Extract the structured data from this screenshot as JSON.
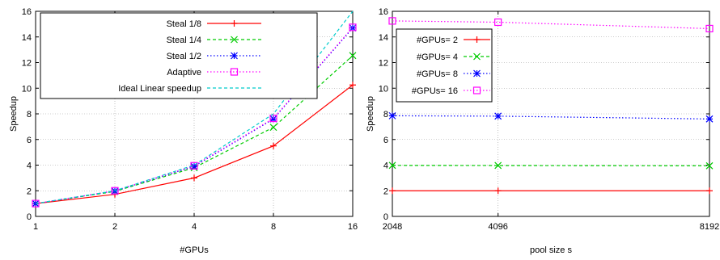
{
  "chart_data": [
    {
      "type": "line",
      "xlabel": "#GPUs",
      "ylabel": "Speedup",
      "x_scale": "log2",
      "x": [
        1,
        2,
        4,
        8,
        16
      ],
      "x_tick_labels": [
        "1",
        "2",
        "4",
        "8",
        "16"
      ],
      "ylim": [
        0,
        16
      ],
      "y_ticks": [
        0,
        2,
        4,
        6,
        8,
        10,
        12,
        14,
        16
      ],
      "grid": true,
      "legend_position": "top-left",
      "series": [
        {
          "name": "Steal 1/8",
          "color": "#ff0000",
          "marker": "plus",
          "dash": "solid",
          "values": [
            1,
            1.72,
            3.0,
            5.5,
            10.25
          ]
        },
        {
          "name": "Steal 1/4",
          "color": "#00cc00",
          "marker": "cross",
          "dash": "dashed",
          "values": [
            1,
            1.95,
            3.8,
            6.95,
            12.55
          ]
        },
        {
          "name": "Steal 1/2",
          "color": "#0000ff",
          "marker": "star",
          "dash": "dotted",
          "values": [
            1,
            1.98,
            3.9,
            7.6,
            14.7
          ]
        },
        {
          "name": "Adaptive",
          "color": "#ff00ff",
          "marker": "square",
          "dash": "dotted",
          "values": [
            1,
            2.0,
            3.95,
            7.65,
            14.75
          ]
        },
        {
          "name": "Ideal Linear speedup",
          "color": "#00cccc",
          "marker": "none",
          "dash": "dashed",
          "values": [
            1,
            2,
            4,
            8,
            16
          ]
        }
      ]
    },
    {
      "type": "line",
      "xlabel": "pool size s",
      "ylabel": "Speedup",
      "x": [
        2048,
        4096,
        8192
      ],
      "x_tick_labels": [
        "2048",
        "4096",
        "8192"
      ],
      "ylim": [
        0,
        16
      ],
      "y_ticks": [
        0,
        2,
        4,
        6,
        8,
        10,
        12,
        14,
        16
      ],
      "grid": true,
      "legend_position": "top-left",
      "series": [
        {
          "name": "#GPUs= 2",
          "color": "#ff0000",
          "marker": "plus",
          "dash": "solid",
          "values": [
            2.0,
            2.0,
            2.0
          ]
        },
        {
          "name": "#GPUs= 4",
          "color": "#00cc00",
          "marker": "cross",
          "dash": "dashed",
          "values": [
            3.98,
            3.97,
            3.95
          ]
        },
        {
          "name": "#GPUs= 8",
          "color": "#0000ff",
          "marker": "star",
          "dash": "dotted",
          "values": [
            7.85,
            7.82,
            7.6
          ]
        },
        {
          "name": "#GPUs= 16",
          "color": "#ff00ff",
          "marker": "square",
          "dash": "dotted",
          "values": [
            15.25,
            15.15,
            14.65
          ]
        }
      ]
    }
  ]
}
